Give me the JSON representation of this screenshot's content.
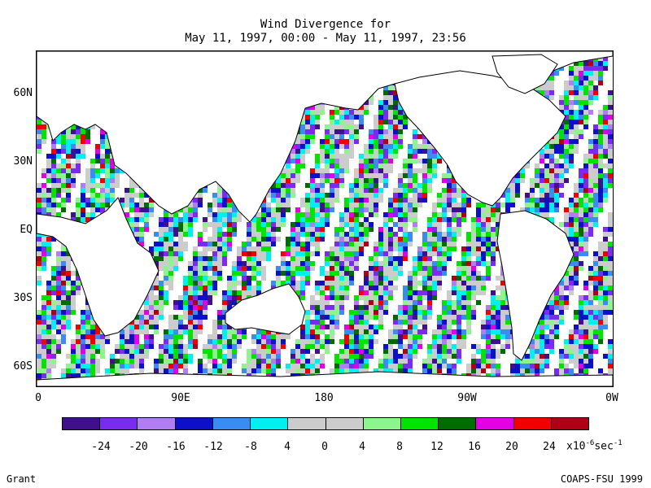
{
  "title": {
    "line1": "Wind Divergence for",
    "line2": "May 11, 1997, 00:00 - May 11, 1997, 23:56"
  },
  "map": {
    "lat_labels": [
      "60N",
      "30N",
      "EQ",
      "30S",
      "60S"
    ],
    "lon_labels": [
      "0",
      "90E",
      "180",
      "90W",
      "0W"
    ],
    "land_color": "#ffffff",
    "coastline_color": "#000000"
  },
  "colorbar": {
    "colors": [
      "#3f0f8c",
      "#7b2bf0",
      "#b07ef0",
      "#0c10c8",
      "#3a8cf0",
      "#00f0f0",
      "#cccccc",
      "#cccccc",
      "#8cf68c",
      "#00e400",
      "#006c00",
      "#e400e4",
      "#f00000",
      "#b00016"
    ],
    "tick_labels": [
      "-24",
      "-20",
      "-16",
      "-12",
      "-8",
      "4",
      "0",
      "4",
      "8",
      "12",
      "16",
      "20",
      "24"
    ],
    "units_prefix": "x10",
    "units_exp": "-6",
    "units_suffix": "sec",
    "units_suffix_exp": "-1"
  },
  "footer": {
    "author": "Grant",
    "credit": "COAPS-FSU 1999"
  }
}
